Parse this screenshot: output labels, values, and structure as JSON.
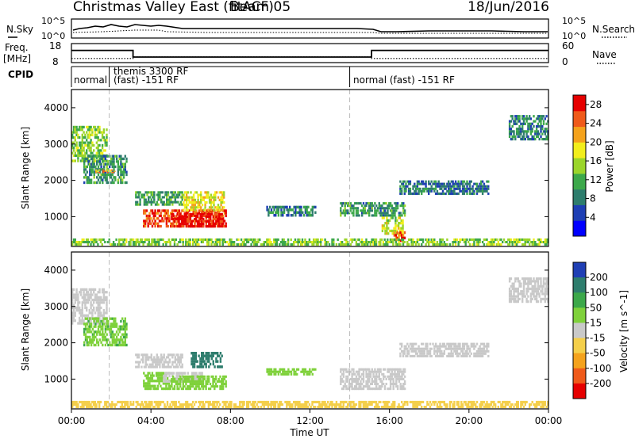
{
  "header": {
    "station": "Christmas Valley East (fitACF)",
    "beam": "Beam 05",
    "date": "18/Jun/2016"
  },
  "top_panels": {
    "nsky": {
      "left_label": "N.Sky",
      "right_label": "N.Search",
      "left_ticks": [
        "10^5",
        "10^0"
      ],
      "right_ticks": [
        "10^5",
        "10^0"
      ]
    },
    "freq": {
      "left_label_1": "Freq.",
      "left_label_2": "[MHz]",
      "right_label": "Nave",
      "left_ticks": [
        "18",
        "8"
      ],
      "right_ticks": [
        "60",
        "0"
      ],
      "freq_mhz": [
        [
          0,
          14.4
        ],
        [
          3.1,
          14.4
        ],
        [
          3.1,
          10.9
        ],
        [
          15.1,
          10.9
        ],
        [
          15.1,
          14.4
        ],
        [
          24,
          14.4
        ]
      ],
      "nave": [
        [
          0,
          13
        ],
        [
          3.1,
          13
        ],
        [
          3.1,
          18
        ],
        [
          15.1,
          18
        ],
        [
          15.1,
          13
        ],
        [
          24,
          13
        ]
      ]
    },
    "cpid": {
      "label": "CPID",
      "segments": [
        "normal",
        "themis 3300 RF",
        "(fast) -151 RF",
        "normal (fast) -151 RF"
      ],
      "boundaries_hours": [
        1.9,
        14.0
      ]
    }
  },
  "chart_data": [
    {
      "type": "heatmap",
      "name": "Power",
      "xlabel": "Time UT",
      "ylabel": "Slant Range [km]",
      "x_range_hours": [
        0,
        24
      ],
      "ylim": [
        180,
        4500
      ],
      "x_ticks": [
        "00:00",
        "04:00",
        "08:00",
        "12:00",
        "16:00",
        "20:00",
        "00:00"
      ],
      "y_ticks": [
        1000,
        2000,
        3000,
        4000
      ],
      "colorbar": {
        "label": "Power [dB]",
        "ticks": [
          4,
          8,
          12,
          16,
          20,
          24,
          28
        ],
        "range": [
          0,
          30
        ],
        "colors": [
          "#0000ff",
          "#1e3fb4",
          "#2e7d6d",
          "#3ca84a",
          "#9bd52a",
          "#f2ee1c",
          "#f4a21c",
          "#ef5a1a",
          "#e60000"
        ]
      },
      "regions": [
        {
          "t": [
            0.0,
            1.8
          ],
          "r": [
            2500,
            3500
          ],
          "value": 14
        },
        {
          "t": [
            0.6,
            2.8
          ],
          "r": [
            1900,
            2700
          ],
          "value": 10
        },
        {
          "t": [
            1.2,
            2.2
          ],
          "r": [
            2200,
            2300
          ],
          "value": 22
        },
        {
          "t": [
            3.2,
            5.6
          ],
          "r": [
            1300,
            1700
          ],
          "value": 11
        },
        {
          "t": [
            3.6,
            7.8
          ],
          "r": [
            700,
            1200
          ],
          "value": 26
        },
        {
          "t": [
            5.0,
            7.6
          ],
          "r": [
            700,
            1100
          ],
          "value": 29
        },
        {
          "t": [
            5.6,
            7.7
          ],
          "r": [
            1150,
            1700
          ],
          "value": 18
        },
        {
          "t": [
            9.8,
            12.3
          ],
          "r": [
            1000,
            1300
          ],
          "value": 9
        },
        {
          "t": [
            13.5,
            16.8
          ],
          "r": [
            1000,
            1400
          ],
          "value": 10
        },
        {
          "t": [
            15.6,
            16.7
          ],
          "r": [
            500,
            1000
          ],
          "value": 17
        },
        {
          "t": [
            16.2,
            16.8
          ],
          "r": [
            300,
            600
          ],
          "value": 26
        },
        {
          "t": [
            16.5,
            21.0
          ],
          "r": [
            1600,
            2000
          ],
          "value": 8
        },
        {
          "t": [
            22.0,
            24.0
          ],
          "r": [
            3100,
            3800
          ],
          "value": 9
        },
        {
          "t": [
            0.0,
            24.0
          ],
          "r": [
            200,
            400
          ],
          "value": 14
        }
      ],
      "dashed_lines_hours": [
        1.9,
        14.0
      ]
    },
    {
      "type": "heatmap",
      "name": "Velocity",
      "xlabel": "Time UT",
      "ylabel": "Slant Range [km]",
      "x_range_hours": [
        0,
        24
      ],
      "ylim": [
        180,
        4500
      ],
      "x_ticks": [
        "00:00",
        "04:00",
        "08:00",
        "12:00",
        "16:00",
        "20:00",
        "00:00"
      ],
      "y_ticks": [
        1000,
        2000,
        3000,
        4000
      ],
      "colorbar": {
        "label": "Velocity [m s^-1]",
        "ticks": [
          200,
          100,
          50,
          15,
          -15,
          -50,
          -100,
          -200
        ],
        "colors": [
          "#1f3fb4",
          "#2e7d6d",
          "#3ca84a",
          "#7fd13b",
          "#c9c9c9",
          "#f4cf4a",
          "#f4a21c",
          "#ef5a1a",
          "#e60000"
        ]
      },
      "regions": [
        {
          "t": [
            0.0,
            1.8
          ],
          "r": [
            2500,
            3500
          ],
          "value": 0
        },
        {
          "t": [
            0.6,
            2.8
          ],
          "r": [
            1900,
            2700
          ],
          "value": 40
        },
        {
          "t": [
            3.2,
            5.6
          ],
          "r": [
            1300,
            1700
          ],
          "value": 0
        },
        {
          "t": [
            3.6,
            5.0
          ],
          "r": [
            700,
            1200
          ],
          "value": 30
        },
        {
          "t": [
            4.6,
            6.6
          ],
          "r": [
            900,
            1200
          ],
          "value": 0
        },
        {
          "t": [
            6.0,
            7.6
          ],
          "r": [
            1300,
            1750
          ],
          "value": 180
        },
        {
          "t": [
            5.0,
            7.8
          ],
          "r": [
            700,
            1100
          ],
          "value": 30
        },
        {
          "t": [
            9.8,
            12.3
          ],
          "r": [
            1100,
            1300
          ],
          "value": 30
        },
        {
          "t": [
            13.5,
            16.8
          ],
          "r": [
            700,
            1300
          ],
          "value": 0
        },
        {
          "t": [
            16.5,
            21.0
          ],
          "r": [
            1600,
            2000
          ],
          "value": 0
        },
        {
          "t": [
            22.0,
            24.0
          ],
          "r": [
            3100,
            3800
          ],
          "value": 0
        },
        {
          "t": [
            0.0,
            24.0
          ],
          "r": [
            200,
            400
          ],
          "value": -30
        }
      ],
      "dashed_lines_hours": [
        1.9,
        14.0
      ]
    }
  ]
}
